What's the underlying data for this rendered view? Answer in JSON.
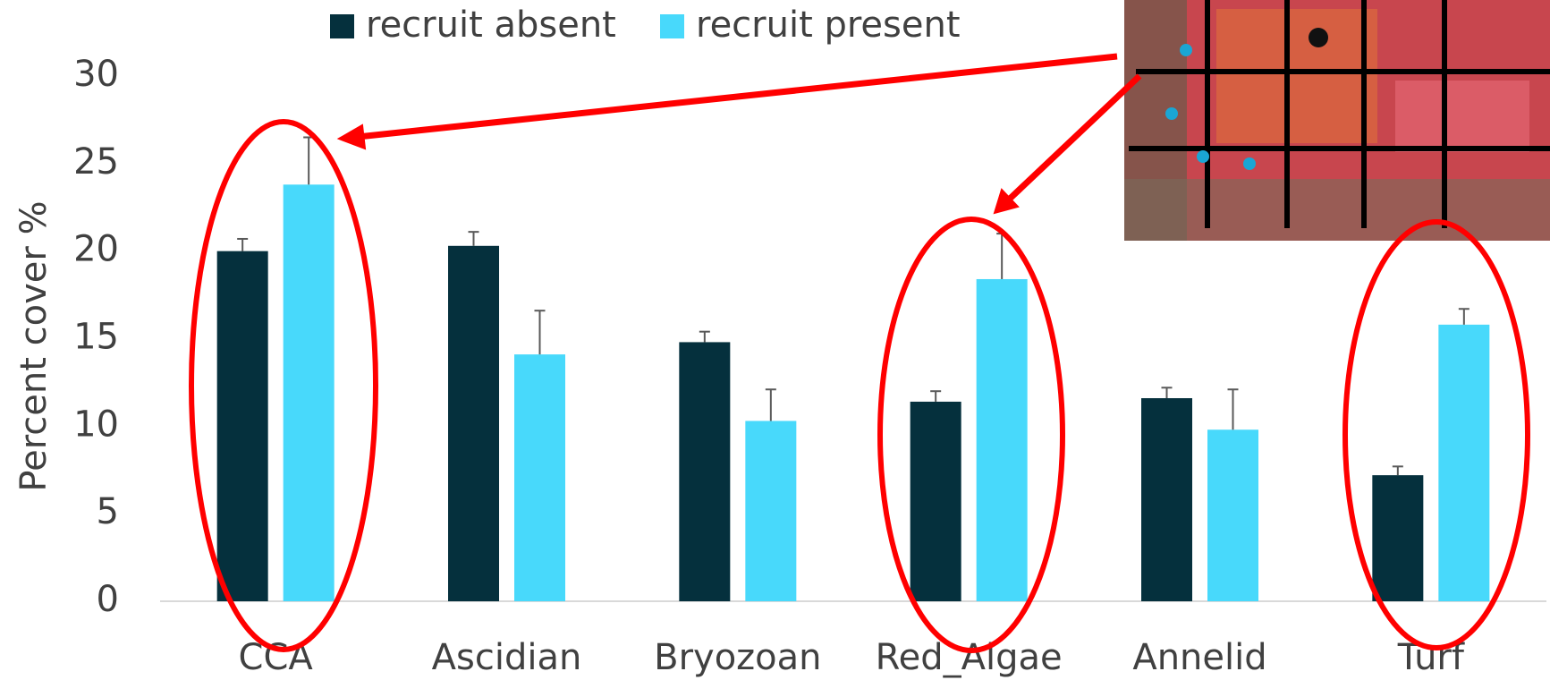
{
  "chart_data": {
    "type": "bar",
    "y_label": "Percent cover %",
    "categories": [
      "CCA",
      "Ascidian",
      "Bryozoan",
      "Red_Algae",
      "Annelid",
      "Turf"
    ],
    "series": [
      {
        "name": "recruit absent",
        "color": "#05303d",
        "values": [
          20.0,
          20.3,
          14.8,
          11.4,
          11.6,
          7.2
        ],
        "errors": [
          0.7,
          0.8,
          0.6,
          0.6,
          0.6,
          0.5
        ]
      },
      {
        "name": "recruit present",
        "color": "#48d9fb",
        "values": [
          23.8,
          14.1,
          10.3,
          18.4,
          9.8,
          15.8
        ],
        "errors": [
          2.7,
          2.5,
          1.8,
          2.6,
          2.3,
          0.9
        ]
      }
    ],
    "ylim": [
      0,
      30
    ],
    "yticks": [
      0,
      5,
      10,
      15,
      20,
      25,
      30
    ],
    "legend": "top"
  }
}
